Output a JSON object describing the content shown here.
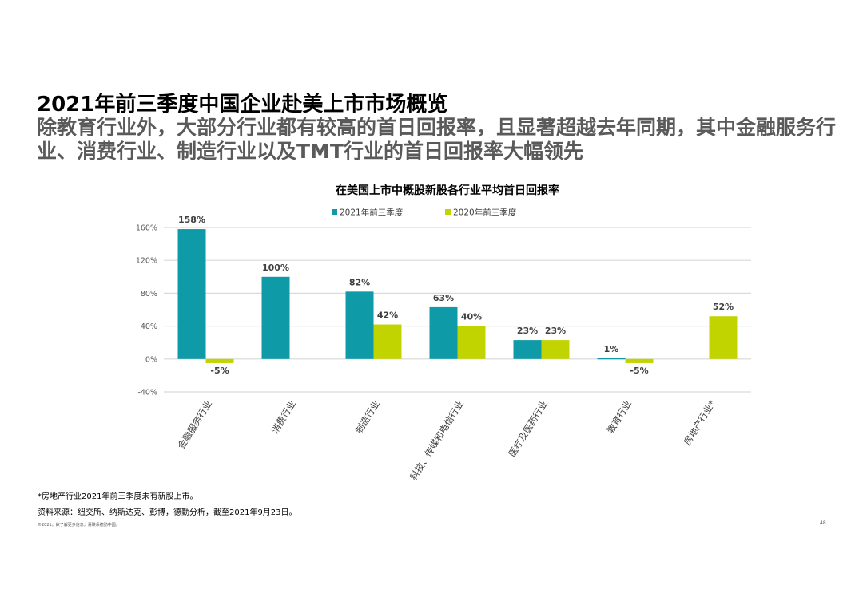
{
  "page": {
    "title": "2021年前三季度中国企业赴美上市市场概览",
    "subtitle": "除教育行业外，大部分行业都有较高的首日回报率，且显著超越去年同期，其中金融服务行业、消费行业、制造行业以及TMT行业的首日回报率大幅领先",
    "footnote": "*房地产行业2021年前三季度未有新股上市。",
    "source": "资料来源：纽交所、纳斯达克、彭博，德勤分析，截至2021年9月23日。",
    "copyright": "©2021。欲了解更多信息，请联系德勤中国。",
    "page_number": "48"
  },
  "chart_data": {
    "type": "bar",
    "title": "在美国上市中概股新股各行业平均首日回报率",
    "categories": [
      "金融服务行业",
      "消费行业",
      "制造行业",
      "科技、传媒和电信行业",
      "医疗及医药行业",
      "教育行业",
      "房地产行业*"
    ],
    "series": [
      {
        "name": "2021年前三季度",
        "color": "#0f9aa8",
        "values": [
          158,
          100,
          82,
          63,
          23,
          1,
          null
        ],
        "labels": [
          "158%",
          "100%",
          "82%",
          "63%",
          "23%",
          "1%",
          ""
        ]
      },
      {
        "name": "2020年前三季度",
        "color": "#c2d400",
        "values": [
          -5,
          null,
          42,
          40,
          23,
          -5,
          52
        ],
        "labels": [
          "-5%",
          "",
          "42%",
          "40%",
          "23%",
          "-5%",
          "52%"
        ]
      }
    ],
    "yticks": [
      "160%",
      "120%",
      "80%",
      "40%",
      "0%",
      "-40%"
    ],
    "ylim": [
      -40,
      160
    ],
    "grid": true,
    "legend_position": "top"
  }
}
